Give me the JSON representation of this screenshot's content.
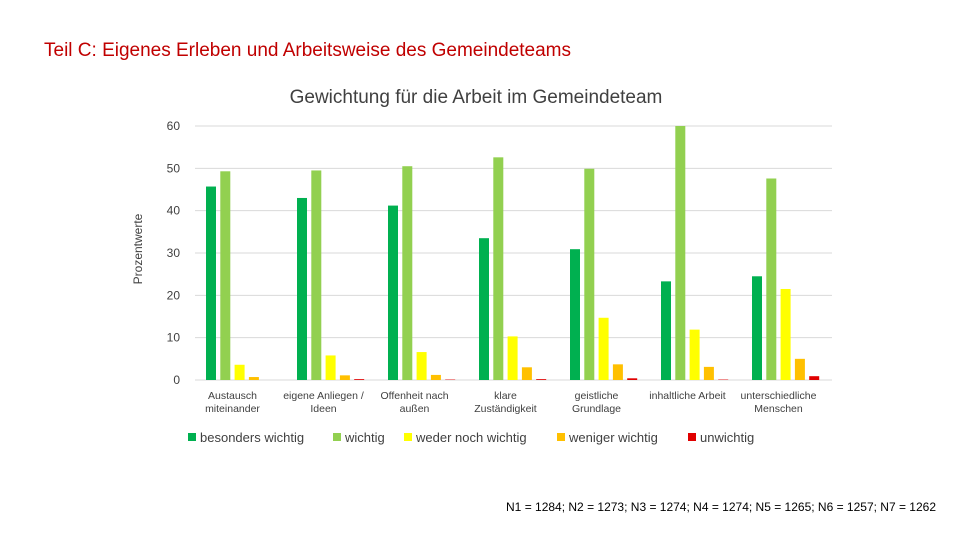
{
  "slide": {
    "title": "Teil C: Eigenes Erleben und Arbeitsweise des Gemeindeteams",
    "footnote": "N1 = 1284; N2 = 1273; N3 = 1274; N4 = 1274; N5 = 1265; N6 = 1257; N7 = 1262"
  },
  "chart_data": {
    "type": "bar",
    "title": "Gewichtung für die Arbeit im Gemeindeteam",
    "ylabel": "Prozentwerte",
    "xlabel": "",
    "ylim": [
      0,
      60
    ],
    "yticks": [
      0,
      10,
      20,
      30,
      40,
      50,
      60
    ],
    "grid": true,
    "legend_position": "bottom",
    "categories": [
      [
        "Austausch",
        "miteinander"
      ],
      [
        "eigene Anliegen /",
        "Ideen"
      ],
      [
        "Offenheit nach",
        "außen"
      ],
      [
        "klare",
        "Zuständigkeit"
      ],
      [
        "geistliche",
        "Grundlage"
      ],
      [
        "inhaltliche Arbeit"
      ],
      [
        "unterschiedliche",
        "Menschen"
      ]
    ],
    "series": [
      {
        "name": "besonders wichtig",
        "color": "#00b050",
        "values": [
          45.7,
          43.0,
          41.2,
          33.5,
          30.9,
          23.3,
          24.5
        ]
      },
      {
        "name": "wichtig",
        "color": "#92d050",
        "values": [
          49.3,
          49.5,
          50.5,
          52.6,
          49.9,
          60.0,
          47.6
        ]
      },
      {
        "name": "weder noch wichtig",
        "color": "#ffff00",
        "values": [
          3.6,
          5.8,
          6.6,
          10.3,
          14.7,
          11.9,
          21.5
        ]
      },
      {
        "name": "weniger wichtig",
        "color": "#ffc000",
        "values": [
          0.7,
          1.1,
          1.2,
          3.0,
          3.7,
          3.1,
          5.0
        ]
      },
      {
        "name": "unwichtig",
        "color": "#e00000",
        "values": [
          0.0,
          0.2,
          0.1,
          0.2,
          0.4,
          0.1,
          0.9
        ]
      }
    ]
  }
}
